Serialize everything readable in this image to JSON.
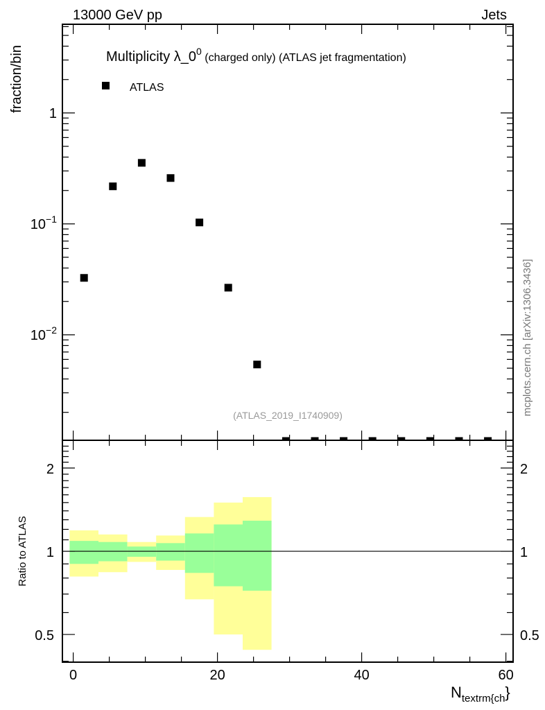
{
  "header": {
    "left": "13000 GeV pp",
    "right": "Jets"
  },
  "side_label": "mcplots.cern.ch [arXiv:1306.3436]",
  "colors": {
    "band_outer": "#ffff99",
    "band_inner": "#99ff99",
    "marker": "#000000",
    "watermark": "#999999"
  },
  "chart_data": [
    {
      "type": "scatter",
      "title_main": "Multiplicity λ_0",
      "title_sup": "0",
      "title_rest": " (charged only) (ATLAS jet fragmentation)",
      "ylabel": "fraction/bin",
      "yscale": "log",
      "ylim": [
        0.00112,
        6.3
      ],
      "xlim": [
        -1.5,
        61
      ],
      "yticks": [
        {
          "v": 1,
          "base": "1",
          "exp": ""
        },
        {
          "v": 0.1,
          "base": "10",
          "exp": "−1"
        },
        {
          "v": 0.01,
          "base": "10",
          "exp": "−2"
        }
      ],
      "legend": {
        "label": "ATLAS",
        "placement": "top-left"
      },
      "watermark": "(ATLAS_2019_I1740909)",
      "series": [
        {
          "name": "ATLAS",
          "x": [
            1.5,
            5.5,
            9.5,
            13.5,
            17.5,
            21.5,
            25.5,
            29.5,
            33.5,
            37.5,
            41.5,
            45.5,
            49.5,
            53.5,
            57.5
          ],
          "y": [
            0.0326,
            0.218,
            0.355,
            0.259,
            0.103,
            0.0266,
            0.0054,
            0,
            0,
            0,
            0,
            0,
            0,
            0,
            0
          ]
        }
      ]
    },
    {
      "type": "area",
      "ylabel": "Ratio to ATLAS",
      "xlabel": "N",
      "xlabel_sub": "textrm{ch",
      "xlabel_tail": "}",
      "yscale": "log",
      "ylim": [
        0.397,
        2.52
      ],
      "xlim": [
        -1.5,
        61
      ],
      "xticks": [
        0,
        20,
        40,
        60
      ],
      "yticks": [
        2,
        1,
        0.5
      ],
      "bin_edges": [
        -0.5,
        3.5,
        7.5,
        11.5,
        15.5,
        19.5,
        23.5,
        27.5
      ],
      "band_outer": {
        "hi": [
          1.19,
          1.15,
          1.08,
          1.14,
          1.33,
          1.5,
          1.57
        ],
        "lo": [
          0.81,
          0.84,
          0.915,
          0.856,
          0.67,
          0.5,
          0.44
        ]
      },
      "band_inner": {
        "hi": [
          1.09,
          1.08,
          1.04,
          1.07,
          1.16,
          1.25,
          1.29
        ],
        "lo": [
          0.9,
          0.92,
          0.955,
          0.925,
          0.835,
          0.747,
          0.72
        ]
      },
      "reference": 1
    }
  ]
}
